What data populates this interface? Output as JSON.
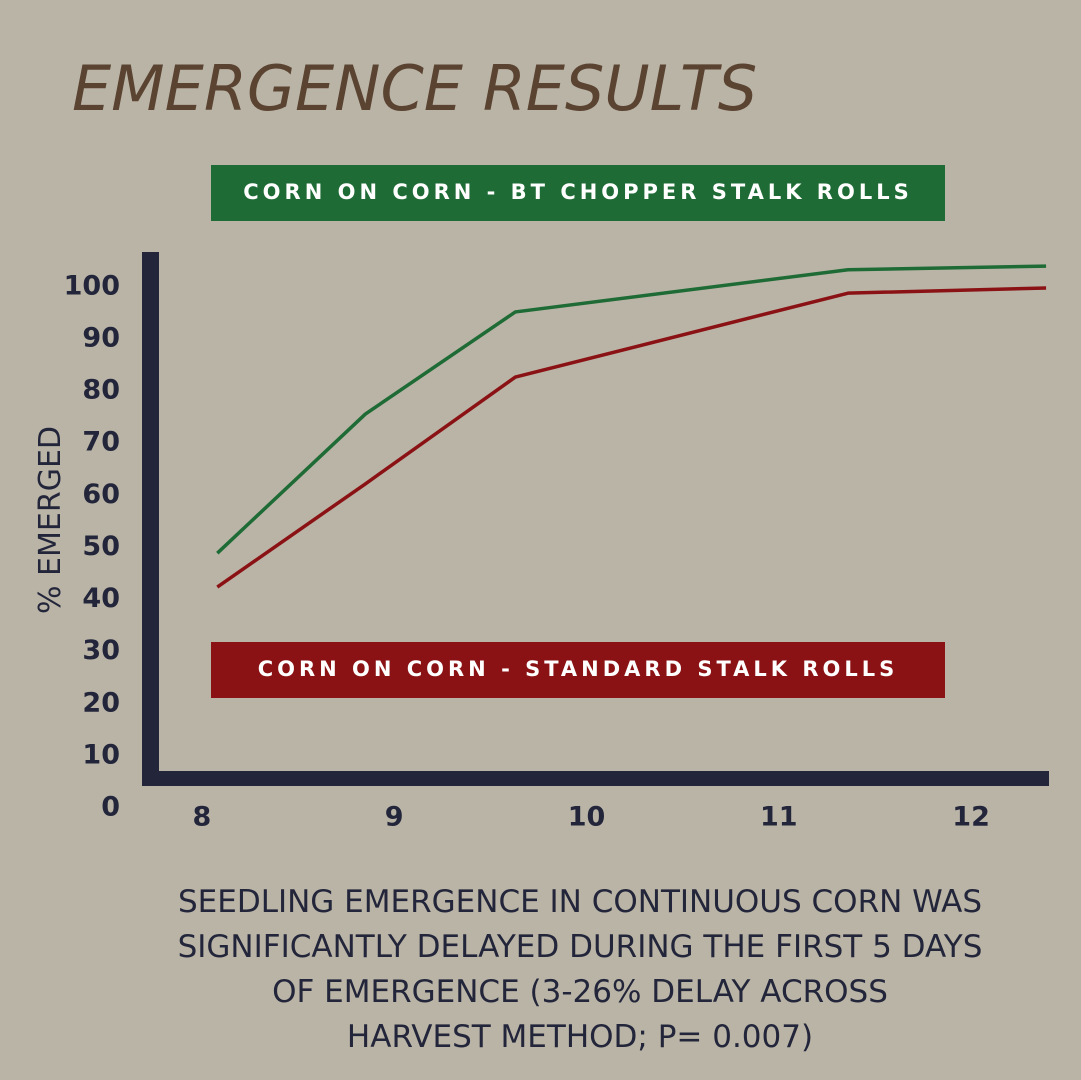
{
  "chart_data": {
    "type": "line",
    "title": "EMERGENCE RESULTS",
    "y_label": "% EMERGED",
    "x": [
      8.08,
      8.85,
      9.63,
      11.36,
      12.39
    ],
    "series": [
      {
        "name": "CORN ON CORN - BT CHOPPER  STALK ROLLS",
        "color": "#1e6b35",
        "values": [
          48.9,
          75.6,
          95.2,
          103.3,
          104.0
        ]
      },
      {
        "name": "CORN ON CORN - STANDARD STALK ROLLS",
        "color": "#8b1214",
        "values": [
          42.4,
          62.2,
          82.7,
          98.8,
          99.8
        ]
      }
    ],
    "xlim": [
      7.73,
      12.4
    ],
    "xticks": [
      8,
      9,
      10,
      11,
      12
    ],
    "ylim": [
      0,
      106.7
    ],
    "yticks": [
      0,
      10,
      20,
      30,
      40,
      50,
      60,
      70,
      80,
      90,
      100
    ],
    "grid": false,
    "annotation": [
      "SEEDLING EMERGENCE IN CONTINUOUS CORN WAS",
      "SIGNIFICANTLY DELAYED DURING THE FIRST 5 DAYS",
      "OF EMERGENCE (3-26% DELAY ACROSS",
      "HARVEST METHOD; P= 0.007)"
    ]
  }
}
